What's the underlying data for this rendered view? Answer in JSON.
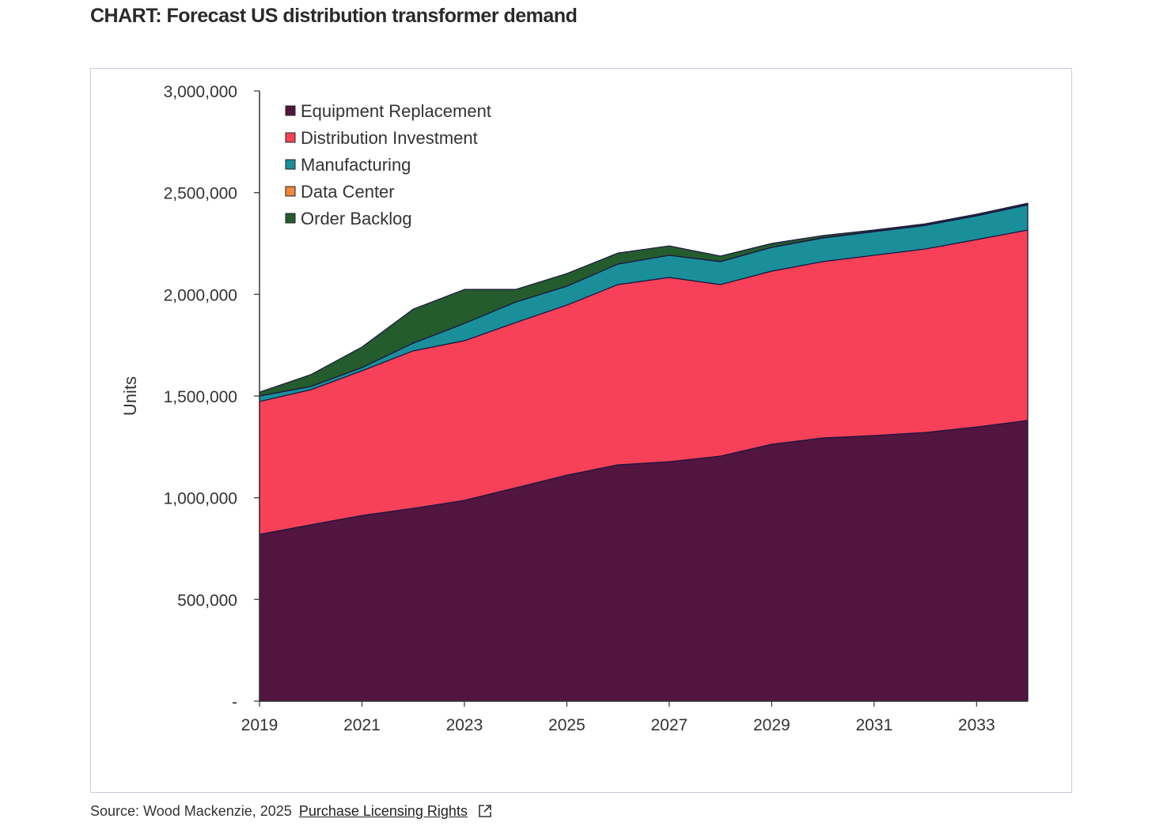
{
  "title": "CHART: Forecast US distribution transformer demand",
  "source": {
    "text": "Source: Wood Mackenzie, 2025",
    "link": "Purchase Licensing Rights",
    "icon": "external-link-icon"
  },
  "chart_data": {
    "type": "area",
    "stacked": true,
    "title": "",
    "xlabel": "",
    "ylabel": "Units",
    "x": [
      2019,
      2020,
      2021,
      2022,
      2023,
      2024,
      2025,
      2026,
      2027,
      2028,
      2029,
      2030,
      2031,
      2032,
      2033,
      2034
    ],
    "xticks": [
      "2019",
      "2021",
      "2023",
      "2025",
      "2027",
      "2029",
      "2031",
      "2033"
    ],
    "yticks": [
      "-",
      "500,000",
      "1,000,000",
      "1,500,000",
      "2,000,000",
      "2,500,000",
      "3,000,000"
    ],
    "ylim": [
      0,
      3000000
    ],
    "grid": false,
    "legend_position": "top-left",
    "series": [
      {
        "name": "Equipment Replacement",
        "color": "#52153f",
        "values": [
          820000,
          867000,
          913000,
          948000,
          987000,
          1049000,
          1111000,
          1162000,
          1177000,
          1205000,
          1263000,
          1294000,
          1306000,
          1321000,
          1348000,
          1380000
        ]
      },
      {
        "name": "Distribution Investment",
        "color": "#f74158",
        "values": [
          653000,
          664000,
          711000,
          774000,
          785000,
          812000,
          836000,
          886000,
          906000,
          843000,
          851000,
          867000,
          886000,
          902000,
          921000,
          936000
        ]
      },
      {
        "name": "Manufacturing",
        "color": "#1a8f9a",
        "values": [
          27000,
          16000,
          16000,
          38000,
          85000,
          101000,
          93000,
          101000,
          109000,
          113000,
          117000,
          116000,
          116000,
          116000,
          117000,
          124000
        ]
      },
      {
        "name": "Data Center",
        "color": "#f0883a",
        "values": [
          0,
          0,
          0,
          0,
          0,
          0,
          0,
          0,
          0,
          0,
          0,
          2000,
          2000,
          2000,
          2000,
          2000
        ]
      },
      {
        "name": "Order Backlog",
        "color": "#245c2d",
        "values": [
          19000,
          58000,
          101000,
          167000,
          167000,
          62000,
          62000,
          54000,
          46000,
          27000,
          19000,
          10000,
          6000,
          6000,
          6000,
          6000
        ]
      }
    ]
  }
}
